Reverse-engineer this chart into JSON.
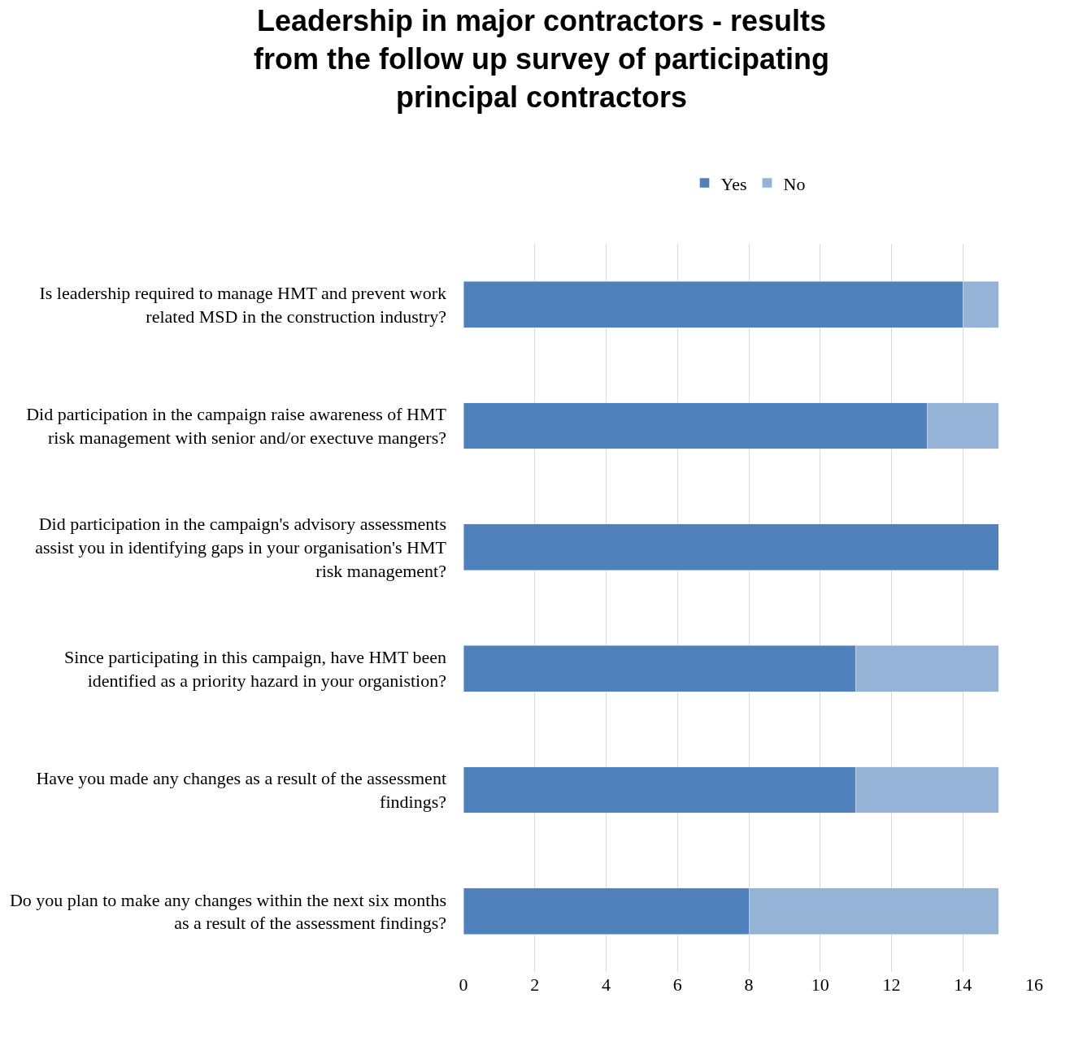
{
  "chart_data": {
    "type": "bar",
    "orientation": "horizontal",
    "stacked": true,
    "title": "Leadership in major contractors - results from the follow up survey of participating principal contractors",
    "categories": [
      "Is leadership required to manage HMT and prevent work related MSD in the construction industry?",
      "Did participation in the campaign raise awareness of HMT risk management with senior and/or exectuve mangers?",
      "Did participation in the campaign's advisory assessments assist you in identifying gaps in your organisation's HMT risk management?",
      "Since participating in this campaign, have HMT been identified as a priority hazard in your organistion?",
      "Have you made any changes as a result of the assessment findings?",
      "Do you plan to make any changes within the next six months as a result of the assessment findings?"
    ],
    "series": [
      {
        "name": "Yes",
        "color": "#4f81bd",
        "values": [
          14,
          13,
          15,
          11,
          11,
          8
        ]
      },
      {
        "name": "No",
        "color": "#95b3d7",
        "values": [
          1,
          2,
          null,
          4,
          4,
          7
        ]
      }
    ],
    "xlim": [
      0,
      16
    ],
    "xticks": [
      0,
      2,
      4,
      6,
      8,
      10,
      12,
      14,
      16
    ],
    "grid": "x",
    "legend": "top"
  }
}
